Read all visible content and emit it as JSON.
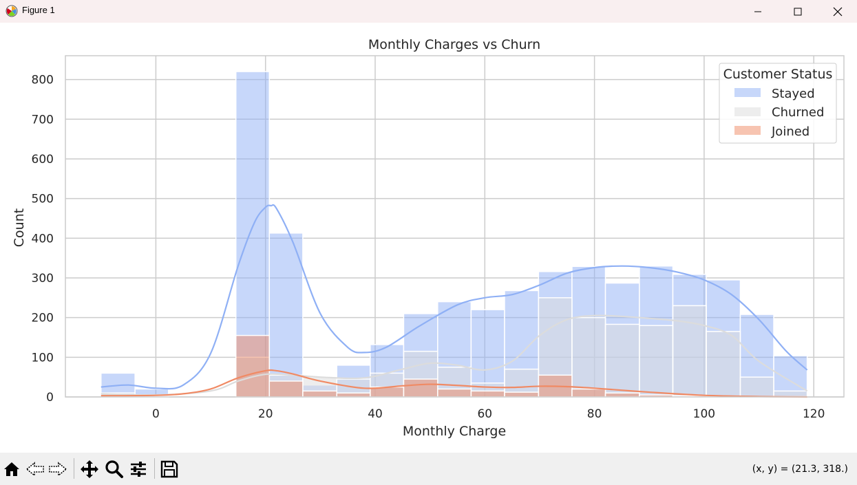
{
  "window": {
    "title": "Figure 1",
    "app_icon": "matplotlib-icon",
    "controls": [
      "minimize-icon",
      "maximize-icon",
      "close-icon"
    ]
  },
  "toolbar": {
    "buttons": [
      "home-icon",
      "back-arrow-icon",
      "forward-arrow-icon",
      "pan-icon",
      "zoom-icon",
      "configure-subplots-icon",
      "save-icon"
    ],
    "coords_text": "(x, y) = (21.3, 318.)"
  },
  "chart_data": {
    "type": "histogram",
    "title": "Monthly Charges vs Churn",
    "xlabel": "Monthly Charge",
    "ylabel": "Count",
    "xlim": [
      -16.5,
      125.5
    ],
    "ylim": [
      0,
      860
    ],
    "xticks": [
      0,
      20,
      40,
      60,
      80,
      100,
      120
    ],
    "yticks": [
      0,
      100,
      200,
      300,
      400,
      500,
      600,
      700,
      800
    ],
    "grid": true,
    "legend": {
      "title": "Customer Status",
      "position": "top-right",
      "entries": [
        "Stayed",
        "Churned",
        "Joined"
      ]
    },
    "bin_edges": [
      -10.0,
      -3.8,
      2.3,
      8.4,
      14.6,
      20.7,
      26.8,
      33.0,
      39.1,
      45.2,
      51.4,
      57.5,
      63.6,
      69.8,
      75.9,
      82.0,
      88.2,
      94.3,
      100.4,
      106.6,
      112.7,
      118.8
    ],
    "series": [
      {
        "name": "Stayed",
        "color": "#8fb0f5",
        "counts": [
          60,
          20,
          0,
          0,
          820,
          413,
          30,
          80,
          132,
          210,
          240,
          220,
          268,
          316,
          329,
          287,
          330,
          309,
          295,
          208,
          104
        ],
        "kde_x": [
          -10,
          -5,
          0,
          5,
          10,
          15,
          18,
          20,
          21,
          22,
          25,
          30,
          35,
          38,
          42,
          48,
          55,
          60,
          65,
          70,
          75,
          80,
          85,
          90,
          95,
          100,
          105,
          110,
          115,
          118.8
        ],
        "kde_y": [
          25,
          30,
          22,
          30,
          110,
          330,
          440,
          478,
          482,
          475,
          390,
          210,
          125,
          112,
          125,
          178,
          232,
          250,
          258,
          282,
          312,
          326,
          330,
          326,
          315,
          295,
          258,
          195,
          115,
          68
        ]
      },
      {
        "name": "Churned",
        "color": "#dcdcdc",
        "counts": [
          10,
          5,
          0,
          0,
          100,
          55,
          50,
          45,
          60,
          115,
          75,
          35,
          70,
          250,
          200,
          183,
          180,
          230,
          165,
          50,
          15
        ],
        "kde_x": [
          -10,
          0,
          10,
          15,
          20,
          25,
          30,
          38,
          45,
          50,
          55,
          60,
          65,
          70,
          75,
          80,
          85,
          90,
          95,
          100,
          105,
          110,
          118.8
        ],
        "kde_y": [
          8,
          5,
          15,
          40,
          57,
          55,
          50,
          48,
          70,
          85,
          80,
          68,
          90,
          155,
          195,
          205,
          203,
          198,
          192,
          180,
          155,
          90,
          15
        ]
      },
      {
        "name": "Joined",
        "color": "#f08a64",
        "counts": [
          2,
          2,
          0,
          0,
          155,
          40,
          15,
          10,
          25,
          45,
          20,
          15,
          12,
          55,
          20,
          10,
          5,
          3,
          2,
          1,
          1
        ],
        "kde_x": [
          -10,
          0,
          5,
          10,
          15,
          20,
          22,
          25,
          30,
          38,
          45,
          50,
          55,
          60,
          65,
          70,
          75,
          80,
          90,
          100,
          110,
          118.8
        ],
        "kde_y": [
          3,
          4,
          8,
          20,
          48,
          66,
          66,
          58,
          40,
          22,
          28,
          32,
          29,
          25,
          24,
          27,
          26,
          22,
          12,
          4,
          1,
          0
        ]
      }
    ]
  }
}
